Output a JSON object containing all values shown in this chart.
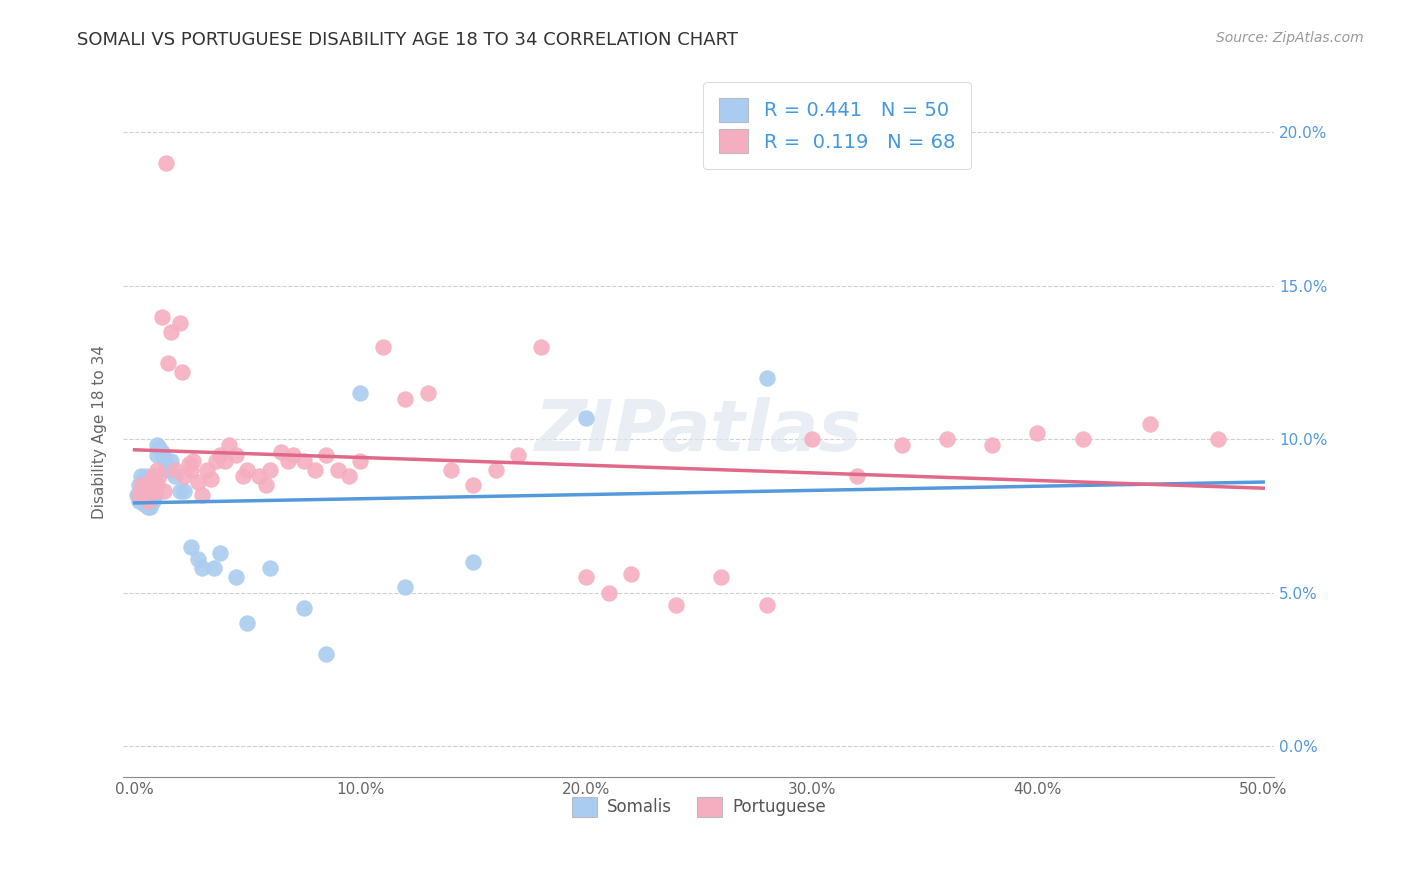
{
  "title": "SOMALI VS PORTUGUESE DISABILITY AGE 18 TO 34 CORRELATION CHART",
  "source": "Source: ZipAtlas.com",
  "ylabel": "Disability Age 18 to 34",
  "xlim": [
    -0.005,
    0.505
  ],
  "ylim": [
    -0.01,
    0.215
  ],
  "xticks": [
    0.0,
    0.1,
    0.2,
    0.3,
    0.4,
    0.5
  ],
  "yticks": [
    0.0,
    0.05,
    0.1,
    0.15,
    0.2
  ],
  "xticklabels": [
    "0.0%",
    "10.0%",
    "20.0%",
    "30.0%",
    "40.0%",
    "50.0%"
  ],
  "yticklabels": [
    "0.0%",
    "5.0%",
    "10.0%",
    "15.0%",
    "20.0%"
  ],
  "somali_R": 0.441,
  "somali_N": 50,
  "portuguese_R": 0.119,
  "portuguese_N": 68,
  "somali_color": "#aaccf0",
  "portuguese_color": "#f5aec0",
  "somali_line_color": "#5599dd",
  "portuguese_line_color": "#e06888",
  "background_color": "#ffffff",
  "grid_color": "#d0d0d0",
  "legend_text_color": "#4499dd",
  "somali_x": [
    0.001,
    0.002,
    0.002,
    0.003,
    0.003,
    0.003,
    0.004,
    0.004,
    0.004,
    0.004,
    0.005,
    0.005,
    0.005,
    0.005,
    0.006,
    0.006,
    0.006,
    0.007,
    0.007,
    0.007,
    0.008,
    0.008,
    0.009,
    0.009,
    0.01,
    0.01,
    0.011,
    0.012,
    0.013,
    0.014,
    0.015,
    0.016,
    0.018,
    0.02,
    0.022,
    0.025,
    0.028,
    0.03,
    0.035,
    0.038,
    0.045,
    0.05,
    0.06,
    0.075,
    0.085,
    0.1,
    0.12,
    0.15,
    0.2,
    0.28
  ],
  "somali_y": [
    0.082,
    0.08,
    0.085,
    0.083,
    0.086,
    0.088,
    0.079,
    0.081,
    0.083,
    0.085,
    0.08,
    0.082,
    0.086,
    0.088,
    0.078,
    0.081,
    0.084,
    0.078,
    0.082,
    0.086,
    0.08,
    0.084,
    0.082,
    0.086,
    0.095,
    0.098,
    0.097,
    0.096,
    0.094,
    0.092,
    0.09,
    0.093,
    0.088,
    0.083,
    0.083,
    0.065,
    0.061,
    0.058,
    0.058,
    0.063,
    0.055,
    0.04,
    0.058,
    0.045,
    0.03,
    0.115,
    0.052,
    0.06,
    0.107,
    0.12
  ],
  "portuguese_x": [
    0.002,
    0.003,
    0.005,
    0.006,
    0.007,
    0.008,
    0.009,
    0.01,
    0.01,
    0.011,
    0.012,
    0.013,
    0.014,
    0.015,
    0.016,
    0.018,
    0.02,
    0.021,
    0.022,
    0.024,
    0.025,
    0.026,
    0.028,
    0.03,
    0.032,
    0.034,
    0.036,
    0.038,
    0.04,
    0.042,
    0.045,
    0.048,
    0.05,
    0.055,
    0.058,
    0.06,
    0.065,
    0.068,
    0.07,
    0.075,
    0.08,
    0.085,
    0.09,
    0.095,
    0.1,
    0.11,
    0.12,
    0.13,
    0.14,
    0.15,
    0.16,
    0.17,
    0.18,
    0.2,
    0.21,
    0.22,
    0.24,
    0.26,
    0.28,
    0.3,
    0.32,
    0.34,
    0.36,
    0.38,
    0.4,
    0.42,
    0.45,
    0.48
  ],
  "portuguese_y": [
    0.082,
    0.085,
    0.083,
    0.08,
    0.086,
    0.088,
    0.083,
    0.085,
    0.09,
    0.088,
    0.14,
    0.083,
    0.19,
    0.125,
    0.135,
    0.09,
    0.138,
    0.122,
    0.088,
    0.092,
    0.09,
    0.093,
    0.086,
    0.082,
    0.09,
    0.087,
    0.093,
    0.095,
    0.093,
    0.098,
    0.095,
    0.088,
    0.09,
    0.088,
    0.085,
    0.09,
    0.096,
    0.093,
    0.095,
    0.093,
    0.09,
    0.095,
    0.09,
    0.088,
    0.093,
    0.13,
    0.113,
    0.115,
    0.09,
    0.085,
    0.09,
    0.095,
    0.13,
    0.055,
    0.05,
    0.056,
    0.046,
    0.055,
    0.046,
    0.1,
    0.088,
    0.098,
    0.1,
    0.098,
    0.102,
    0.1,
    0.105,
    0.1
  ]
}
